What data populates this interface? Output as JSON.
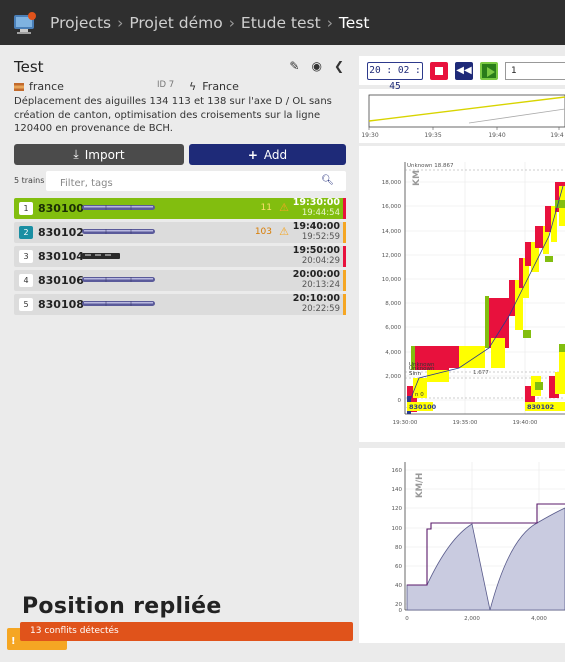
{
  "header": {
    "breadcrumbs": [
      "Projects",
      "Projet démo",
      "Etude test",
      "Test"
    ]
  },
  "study": {
    "title": "Test",
    "type": "france",
    "id_label": "ID 7",
    "infra": "France",
    "description": "Déplacement des aiguilles 134 113 et 138 sur l'axe D / OL sans création de canton, optimisation des croisements sur la ligne 120400 en provenance de BCH."
  },
  "actions": {
    "import_label": "Import",
    "add_label": "Add"
  },
  "filter": {
    "count_label": "5 trains",
    "placeholder": "Filter, tags"
  },
  "trains": [
    {
      "index": "1",
      "name": "830100",
      "conflicts": "11",
      "start": "19:30:00",
      "end": "19:44:54",
      "bar": "#e8113d"
    },
    {
      "index": "2",
      "name": "830102",
      "conflicts": "103",
      "start": "19:40:00",
      "end": "19:52:59",
      "bar": "#f5a623"
    },
    {
      "index": "3",
      "name": "830104",
      "conflicts": "",
      "start": "19:50:00",
      "end": "20:04:29",
      "bar": "#e8113d"
    },
    {
      "index": "4",
      "name": "830106",
      "conflicts": "",
      "start": "20:00:00",
      "end": "20:13:24",
      "bar": "#f5a623"
    },
    {
      "index": "5",
      "name": "830108",
      "conflicts": "",
      "start": "20:10:00",
      "end": "20:22:59",
      "bar": "#f5a623"
    }
  ],
  "bottom": {
    "position_label": "Position repliée",
    "conflicts_label": "13 conflits détectés",
    "conflicts_tab_icon": "!"
  },
  "player": {
    "clock": "20 : 02 : 45",
    "speed": "1"
  },
  "overview": {
    "ticks": [
      "19:30",
      "19:35",
      "19:40",
      "19:4"
    ]
  },
  "spacetime": {
    "yaxis": "KM",
    "yticks": [
      "18,000",
      "16,000",
      "14,000",
      "12,000",
      "10,000",
      "8,000",
      "6,000",
      "4,000",
      "2,000",
      "0"
    ],
    "xticks": [
      "19:30:00",
      "19:35:00",
      "19:40:00"
    ],
    "top_label": "Unknown 18.867",
    "mid_label_1": "Unknown",
    "mid_label_2": "Unknown",
    "mid_label_3": "Sinn",
    "mid_value": "1.677",
    "n_label": "n 0",
    "train_a": "830100",
    "train_b": "830102"
  },
  "speed_chart": {
    "yaxis": "KM/H",
    "yticks": [
      "160",
      "140",
      "120",
      "100",
      "80",
      "60",
      "40",
      "20",
      "0"
    ],
    "xticks": [
      "0",
      "2,000",
      "4,000"
    ]
  },
  "colors": {
    "header": "#2f2f2f",
    "add": "#1e2a78",
    "selected": "#82be0f",
    "conflict": "#e0531b",
    "warning": "#f5a623"
  }
}
